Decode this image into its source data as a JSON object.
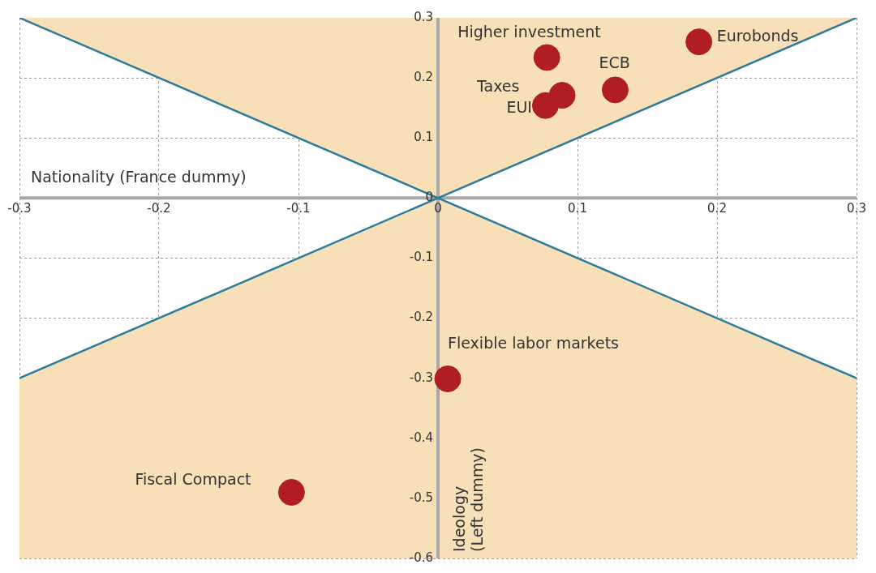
{
  "chart_data": {
    "type": "scatter",
    "xlabel": "Nationality (France dummy)",
    "ylabel": "Ideology (Left dummy)",
    "xlim": [
      -0.3,
      0.3
    ],
    "xticks": [
      -0.3,
      -0.2,
      -0.1,
      0,
      0.1,
      0.2,
      0.3
    ],
    "ylim": [
      -0.6,
      0.3
    ],
    "yticks": [
      0.3,
      0.2,
      0.1,
      0,
      -0.1,
      -0.2,
      -0.3,
      -0.4,
      -0.5,
      -0.6
    ],
    "grid": true,
    "legend": false,
    "marker": "circle",
    "series": [
      {
        "type": "line",
        "color": "#2b7b9b",
        "marker": "none",
        "x": [
          -0.3,
          0,
          0.3
        ],
        "values": [
          0.3,
          0,
          0.3
        ],
        "lower": [
          0.3,
          0,
          0.3
        ],
        "upper": [
          0.3,
          0.3,
          0.3
        ]
      },
      {
        "type": "line",
        "color": "#2b7b9b",
        "marker": "none",
        "x": [
          -0.3,
          0,
          0.3
        ],
        "values": [
          -0.3,
          0,
          -0.3
        ],
        "lower": [
          -0.6,
          -0.6,
          -0.6
        ],
        "upper": [
          -0.3,
          0,
          -0.3
        ]
      },
      {
        "type": "scatter",
        "color": "#b01e23",
        "x": [
          0.078,
          0.187,
          0.127,
          0.089,
          0.077,
          0.007,
          -0.105
        ],
        "values": [
          0.234,
          0.26,
          0.18,
          0.171,
          0.154,
          -0.301,
          -0.49
        ]
      }
    ],
    "annotations": [
      {
        "text": "Higher investment",
        "x": 0.078,
        "y": 0.234
      },
      {
        "text": "Eurobonds",
        "x": 0.187,
        "y": 0.26
      },
      {
        "text": "ECB",
        "x": 0.127,
        "y": 0.18
      },
      {
        "text": "Taxes",
        "x": 0.089,
        "y": 0.171
      },
      {
        "text": "EUI",
        "x": 0.077,
        "y": 0.154
      },
      {
        "text": "Flexible labor markets",
        "x": 0.007,
        "y": -0.301
      },
      {
        "text": "Fiscal Compact",
        "x": -0.105,
        "y": -0.49
      }
    ]
  }
}
